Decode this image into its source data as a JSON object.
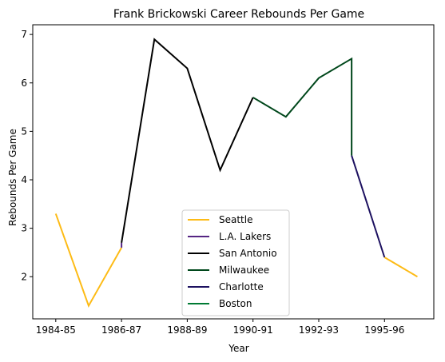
{
  "chart_data": {
    "type": "line",
    "title": "Frank Brickowski Career Rebounds Per Game",
    "xlabel": "Year",
    "ylabel": "Rebounds Per Game",
    "x_ticks": [
      "1984-85",
      "1986-87",
      "1988-89",
      "1990-91",
      "1992-93",
      "1995-96"
    ],
    "x_tick_positions": [
      0,
      2,
      4,
      6,
      8,
      10
    ],
    "xlim": [
      -0.7,
      11.5
    ],
    "ylim": [
      1.13,
      7.2
    ],
    "y_ticks": [
      2,
      3,
      4,
      5,
      6,
      7
    ],
    "grid": false,
    "legend_position": "bottom-center",
    "series": [
      {
        "name": "Seattle",
        "color": "#FDBB16",
        "segments": [
          [
            [
              0,
              3.3
            ],
            [
              1,
              1.4
            ],
            [
              2,
              2.6
            ]
          ],
          [
            [
              10,
              2.4
            ],
            [
              11,
              2.0
            ]
          ]
        ]
      },
      {
        "name": "L.A. Lakers",
        "color": "#552583",
        "segments": [
          [
            [
              2,
              2.6
            ],
            [
              2,
              2.7
            ]
          ]
        ]
      },
      {
        "name": "San Antonio",
        "color": "#000000",
        "segments": [
          [
            [
              2,
              2.7
            ],
            [
              3,
              6.9
            ],
            [
              4,
              6.3
            ],
            [
              5,
              4.2
            ],
            [
              6,
              5.7
            ]
          ]
        ]
      },
      {
        "name": "Milwaukee",
        "color": "#00471B",
        "segments": [
          [
            [
              6,
              5.7
            ],
            [
              7,
              5.3
            ],
            [
              8,
              6.1
            ],
            [
              9,
              6.5
            ],
            [
              9,
              4.5
            ]
          ]
        ]
      },
      {
        "name": "Charlotte",
        "color": "#1D1160",
        "segments": [
          [
            [
              9,
              4.5
            ],
            [
              10,
              2.4
            ]
          ]
        ]
      },
      {
        "name": "Boston",
        "color": "#007A33",
        "segments": []
      }
    ]
  }
}
